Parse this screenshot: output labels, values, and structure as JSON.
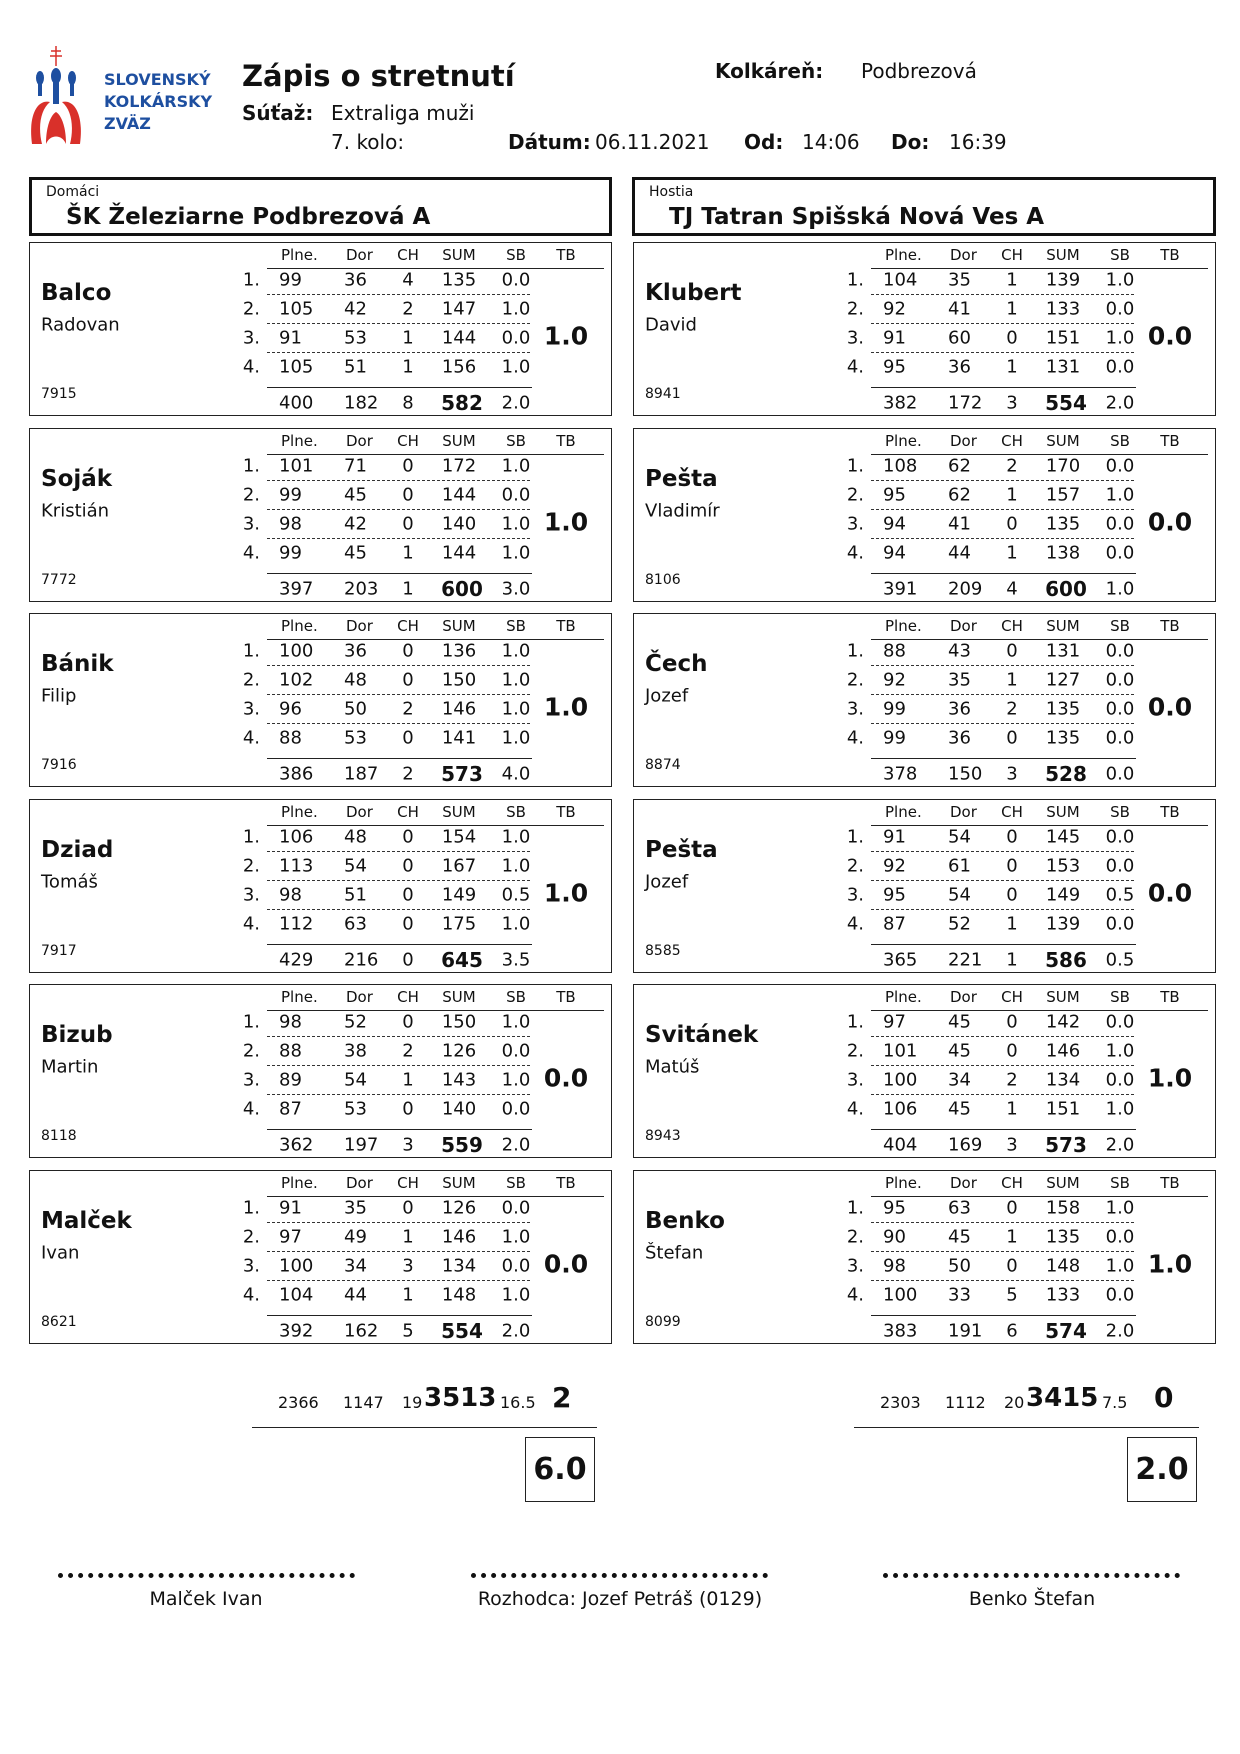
{
  "logo": {
    "lines": [
      "SLOVENSKÝ",
      "KOLKÁRSKY",
      "ZVÄZ"
    ],
    "color_blue": "#1e4fa0",
    "color_red": "#d9302a"
  },
  "header": {
    "title": "Zápis o stretnutí",
    "venue_label": "Kolkáreň:",
    "venue": "Podbrezová",
    "competition_label": "Súťaž:",
    "competition": "Extraliga muži",
    "round": "7. kolo:",
    "date_label": "Dátum:",
    "date": "06.11.2021",
    "from_label": "Od:",
    "from": "14:06",
    "to_label": "Do:",
    "to": "16:39"
  },
  "columns": [
    "Plne.",
    "Dor",
    "CH",
    "SUM",
    "SB",
    "TB"
  ],
  "home": {
    "caption": "Domáci",
    "team": "ŠK Železiarne Podbrezová A",
    "players": [
      {
        "surname": "Balco",
        "name": "Radovan",
        "id": "7915",
        "rows": [
          [
            "99",
            "36",
            "4",
            "135",
            "0.0"
          ],
          [
            "105",
            "42",
            "2",
            "147",
            "1.0"
          ],
          [
            "91",
            "53",
            "1",
            "144",
            "0.0"
          ],
          [
            "105",
            "51",
            "1",
            "156",
            "1.0"
          ]
        ],
        "total": [
          "400",
          "182",
          "8",
          "582",
          "2.0"
        ],
        "tb": "1.0"
      },
      {
        "surname": "Soják",
        "name": "Kristián",
        "id": "7772",
        "rows": [
          [
            "101",
            "71",
            "0",
            "172",
            "1.0"
          ],
          [
            "99",
            "45",
            "0",
            "144",
            "0.0"
          ],
          [
            "98",
            "42",
            "0",
            "140",
            "1.0"
          ],
          [
            "99",
            "45",
            "1",
            "144",
            "1.0"
          ]
        ],
        "total": [
          "397",
          "203",
          "1",
          "600",
          "3.0"
        ],
        "tb": "1.0"
      },
      {
        "surname": "Bánik",
        "name": "Filip",
        "id": "7916",
        "rows": [
          [
            "100",
            "36",
            "0",
            "136",
            "1.0"
          ],
          [
            "102",
            "48",
            "0",
            "150",
            "1.0"
          ],
          [
            "96",
            "50",
            "2",
            "146",
            "1.0"
          ],
          [
            "88",
            "53",
            "0",
            "141",
            "1.0"
          ]
        ],
        "total": [
          "386",
          "187",
          "2",
          "573",
          "4.0"
        ],
        "tb": "1.0"
      },
      {
        "surname": "Dziad",
        "name": "Tomáš",
        "id": "7917",
        "rows": [
          [
            "106",
            "48",
            "0",
            "154",
            "1.0"
          ],
          [
            "113",
            "54",
            "0",
            "167",
            "1.0"
          ],
          [
            "98",
            "51",
            "0",
            "149",
            "0.5"
          ],
          [
            "112",
            "63",
            "0",
            "175",
            "1.0"
          ]
        ],
        "total": [
          "429",
          "216",
          "0",
          "645",
          "3.5"
        ],
        "tb": "1.0"
      },
      {
        "surname": "Bizub",
        "name": "Martin",
        "id": "8118",
        "rows": [
          [
            "98",
            "52",
            "0",
            "150",
            "1.0"
          ],
          [
            "88",
            "38",
            "2",
            "126",
            "0.0"
          ],
          [
            "89",
            "54",
            "1",
            "143",
            "1.0"
          ],
          [
            "87",
            "53",
            "0",
            "140",
            "0.0"
          ]
        ],
        "total": [
          "362",
          "197",
          "3",
          "559",
          "2.0"
        ],
        "tb": "0.0"
      },
      {
        "surname": "Malček",
        "name": "Ivan",
        "id": "8621",
        "rows": [
          [
            "91",
            "35",
            "0",
            "126",
            "0.0"
          ],
          [
            "97",
            "49",
            "1",
            "146",
            "1.0"
          ],
          [
            "100",
            "34",
            "3",
            "134",
            "0.0"
          ],
          [
            "104",
            "44",
            "1",
            "148",
            "1.0"
          ]
        ],
        "total": [
          "392",
          "162",
          "5",
          "554",
          "2.0"
        ],
        "tb": "0.0"
      }
    ],
    "totals": {
      "plne": "2366",
      "dor": "1147",
      "ch": "19",
      "sum": "3513",
      "sb": "16.5",
      "tb": "2"
    },
    "points": "6.0"
  },
  "away": {
    "caption": "Hostia",
    "team": "TJ Tatran Spišská Nová Ves A",
    "players": [
      {
        "surname": "Klubert",
        "name": "David",
        "id": "8941",
        "rows": [
          [
            "104",
            "35",
            "1",
            "139",
            "1.0"
          ],
          [
            "92",
            "41",
            "1",
            "133",
            "0.0"
          ],
          [
            "91",
            "60",
            "0",
            "151",
            "1.0"
          ],
          [
            "95",
            "36",
            "1",
            "131",
            "0.0"
          ]
        ],
        "total": [
          "382",
          "172",
          "3",
          "554",
          "2.0"
        ],
        "tb": "0.0"
      },
      {
        "surname": "Pešta",
        "name": "Vladimír",
        "id": "8106",
        "rows": [
          [
            "108",
            "62",
            "2",
            "170",
            "0.0"
          ],
          [
            "95",
            "62",
            "1",
            "157",
            "1.0"
          ],
          [
            "94",
            "41",
            "0",
            "135",
            "0.0"
          ],
          [
            "94",
            "44",
            "1",
            "138",
            "0.0"
          ]
        ],
        "total": [
          "391",
          "209",
          "4",
          "600",
          "1.0"
        ],
        "tb": "0.0"
      },
      {
        "surname": "Čech",
        "name": "Jozef",
        "id": "8874",
        "rows": [
          [
            "88",
            "43",
            "0",
            "131",
            "0.0"
          ],
          [
            "92",
            "35",
            "1",
            "127",
            "0.0"
          ],
          [
            "99",
            "36",
            "2",
            "135",
            "0.0"
          ],
          [
            "99",
            "36",
            "0",
            "135",
            "0.0"
          ]
        ],
        "total": [
          "378",
          "150",
          "3",
          "528",
          "0.0"
        ],
        "tb": "0.0"
      },
      {
        "surname": "Pešta",
        "name": "Jozef",
        "id": "8585",
        "rows": [
          [
            "91",
            "54",
            "0",
            "145",
            "0.0"
          ],
          [
            "92",
            "61",
            "0",
            "153",
            "0.0"
          ],
          [
            "95",
            "54",
            "0",
            "149",
            "0.5"
          ],
          [
            "87",
            "52",
            "1",
            "139",
            "0.0"
          ]
        ],
        "total": [
          "365",
          "221",
          "1",
          "586",
          "0.5"
        ],
        "tb": "0.0"
      },
      {
        "surname": "Svitánek",
        "name": "Matúš",
        "id": "8943",
        "rows": [
          [
            "97",
            "45",
            "0",
            "142",
            "0.0"
          ],
          [
            "101",
            "45",
            "0",
            "146",
            "1.0"
          ],
          [
            "100",
            "34",
            "2",
            "134",
            "0.0"
          ],
          [
            "106",
            "45",
            "1",
            "151",
            "1.0"
          ]
        ],
        "total": [
          "404",
          "169",
          "3",
          "573",
          "2.0"
        ],
        "tb": "1.0"
      },
      {
        "surname": "Benko",
        "name": "Štefan",
        "id": "8099",
        "rows": [
          [
            "95",
            "63",
            "0",
            "158",
            "1.0"
          ],
          [
            "90",
            "45",
            "1",
            "135",
            "0.0"
          ],
          [
            "98",
            "50",
            "0",
            "148",
            "1.0"
          ],
          [
            "100",
            "33",
            "5",
            "133",
            "0.0"
          ]
        ],
        "total": [
          "383",
          "191",
          "6",
          "574",
          "2.0"
        ],
        "tb": "1.0"
      }
    ],
    "totals": {
      "plne": "2303",
      "dor": "1112",
      "ch": "20",
      "sum": "3415",
      "sb": "7.5",
      "tb": "0"
    },
    "points": "2.0"
  },
  "signatures": {
    "home_captain": "Malček Ivan",
    "referee": "Rozhodca: Jozef Petráš (0129)",
    "away_captain": "Benko Štefan"
  }
}
